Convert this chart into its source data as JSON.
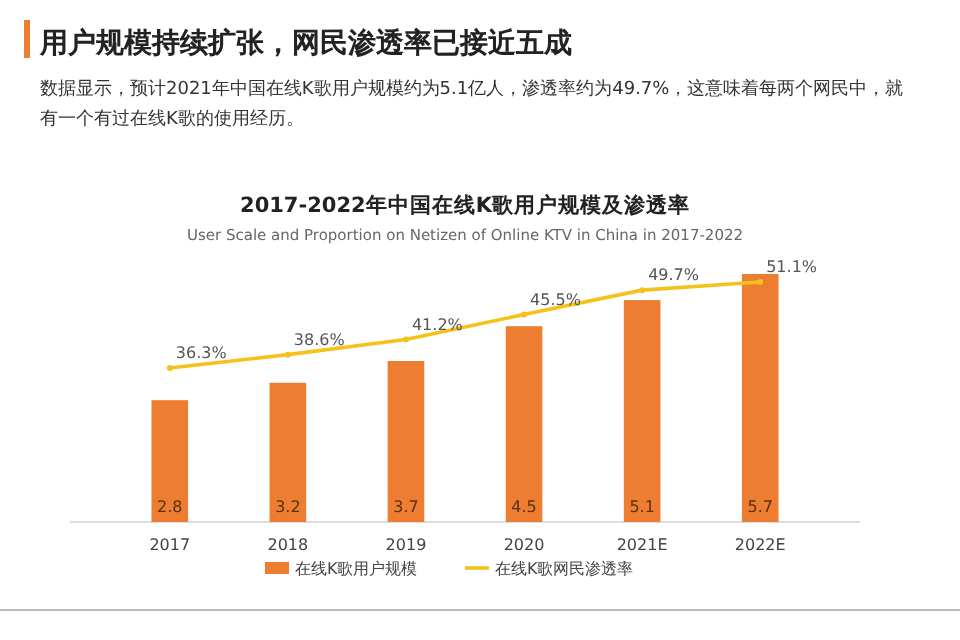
{
  "chart_data": {
    "type": "bar",
    "title": "2017-2022年中国在线K歌用户规模及渗透率",
    "subtitle": "User Scale and Proportion on Netizen of Online KTV in China in 2017-2022",
    "annotations": [
      "用户规模持续扩张，网民渗透率已接近五成",
      "数据显示，预计2021年中国在线K歌用户规模约为5.1亿人，渗透率约为49.7%，这意味着每两个网民中，就有一个有过在线K歌的使用经历。"
    ],
    "categories": [
      "2017",
      "2018",
      "2019",
      "2020",
      "2021E",
      "2022E"
    ],
    "legend": "bottom",
    "marker": "circle",
    "line_style": "solid",
    "tick_labels": "x",
    "series": [
      {
        "name": "在线K歌用户规模",
        "color": "#ed7d31",
        "values": [
          2.8,
          3.2,
          3.7,
          4.5,
          5.1,
          5.7
        ],
        "value_labels": [
          "2.8",
          "3.2",
          "3.7",
          "4.5",
          "5.1",
          "5.7"
        ]
      },
      {
        "name": "在线K歌网民渗透率",
        "type": "line",
        "axis": "y2",
        "color": "#f5c21b",
        "values": [
          36.3,
          38.6,
          41.2,
          45.5,
          49.7,
          51.1
        ],
        "value_labels": [
          "36.3%",
          "38.6%",
          "41.2%",
          "45.5%",
          "49.7%",
          "51.1%"
        ]
      }
    ]
  }
}
